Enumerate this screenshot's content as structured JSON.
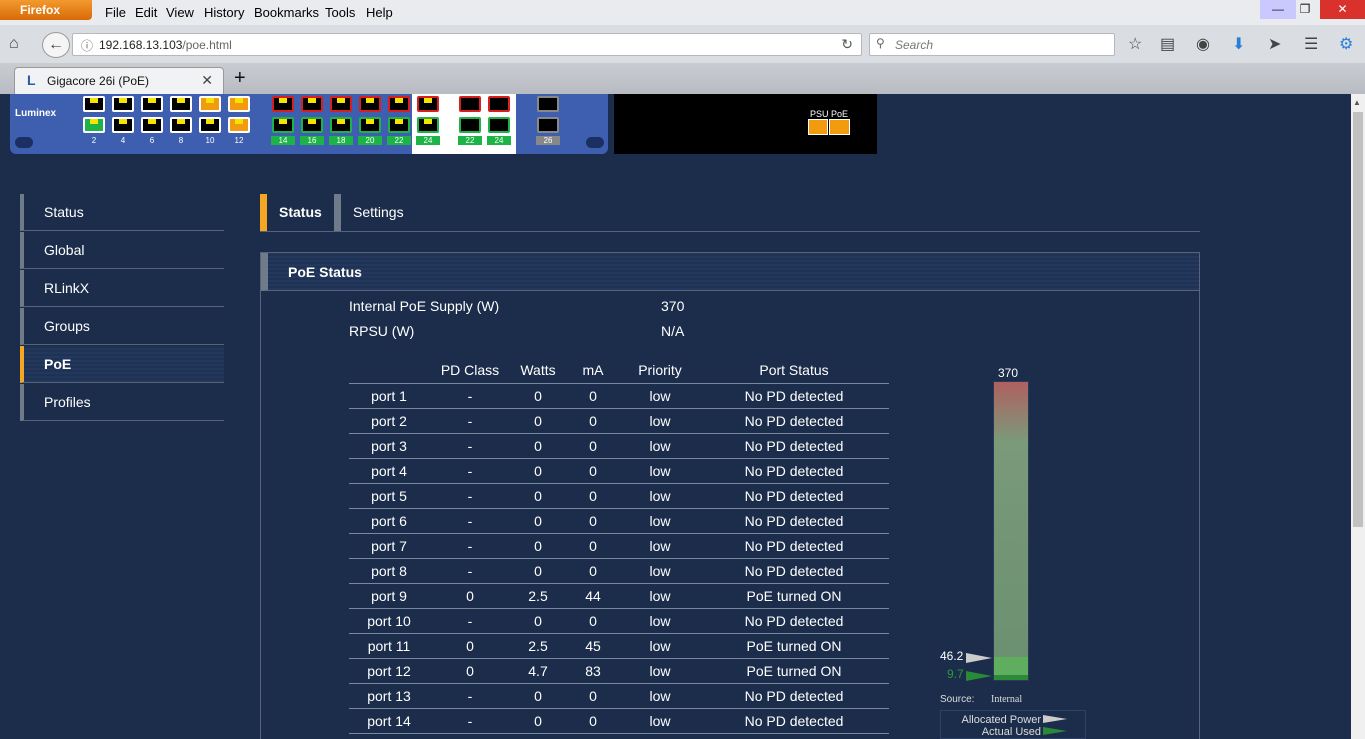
{
  "browser": {
    "app_button": "Firefox",
    "menu": [
      "File",
      "Edit",
      "View",
      "History",
      "Bookmarks",
      "Tools",
      "Help"
    ],
    "url_host": "192.168.13.103",
    "url_path": "/poe.html",
    "search_placeholder": "Search",
    "tab_title": "Gigacore 26i (PoE)"
  },
  "device": {
    "brand": "Luminex",
    "port_labels": [
      "2",
      "4",
      "6",
      "8",
      "10",
      "12",
      "14",
      "16",
      "18",
      "20",
      "22",
      "24",
      "22",
      "24",
      "26"
    ],
    "psu_label": "PSU PoE"
  },
  "sidebar": {
    "items": [
      "Status",
      "Global",
      "RLinkX",
      "Groups",
      "PoE",
      "Profiles"
    ],
    "active": "PoE"
  },
  "page_tabs": {
    "items": [
      "Status",
      "Settings"
    ],
    "active": "Status"
  },
  "panel": {
    "title": "PoE Status",
    "internal_label": "Internal PoE Supply (W)",
    "internal_value": "370",
    "rpsu_label": "RPSU (W)",
    "rpsu_value": "N/A",
    "columns": [
      "",
      "PD Class",
      "Watts",
      "mA",
      "Priority",
      "Port Status"
    ],
    "rows": [
      [
        "port 1",
        "-",
        "0",
        "0",
        "low",
        "No PD detected"
      ],
      [
        "port 2",
        "-",
        "0",
        "0",
        "low",
        "No PD detected"
      ],
      [
        "port 3",
        "-",
        "0",
        "0",
        "low",
        "No PD detected"
      ],
      [
        "port 4",
        "-",
        "0",
        "0",
        "low",
        "No PD detected"
      ],
      [
        "port 5",
        "-",
        "0",
        "0",
        "low",
        "No PD detected"
      ],
      [
        "port 6",
        "-",
        "0",
        "0",
        "low",
        "No PD detected"
      ],
      [
        "port 7",
        "-",
        "0",
        "0",
        "low",
        "No PD detected"
      ],
      [
        "port 8",
        "-",
        "0",
        "0",
        "low",
        "No PD detected"
      ],
      [
        "port 9",
        "0",
        "2.5",
        "44",
        "low",
        "PoE turned ON"
      ],
      [
        "port 10",
        "-",
        "0",
        "0",
        "low",
        "No PD detected"
      ],
      [
        "port 11",
        "0",
        "2.5",
        "45",
        "low",
        "PoE turned ON"
      ],
      [
        "port 12",
        "0",
        "4.7",
        "83",
        "low",
        "PoE turned ON"
      ],
      [
        "port 13",
        "-",
        "0",
        "0",
        "low",
        "No PD detected"
      ],
      [
        "port 14",
        "-",
        "0",
        "0",
        "low",
        "No PD detected"
      ]
    ]
  },
  "gauge": {
    "max_label": "370",
    "max": 370,
    "allocated": 46.2,
    "used": 9.7,
    "allocated_label": "46.2",
    "used_label": "9.7",
    "source_label": "Source:",
    "source_value": "Internal",
    "legend_allocated": "Allocated Power",
    "legend_used": "Actual Used",
    "colors": {
      "allocated": "#5fb05f",
      "used": "#2a8a3a",
      "top": "#b06060"
    }
  }
}
